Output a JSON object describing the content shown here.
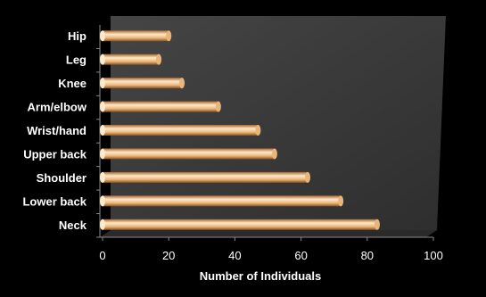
{
  "chart_data": {
    "type": "bar",
    "orientation": "horizontal",
    "categories": [
      "Neck",
      "Lower back",
      "Shoulder",
      "Upper back",
      "Wrist/hand",
      "Arm/elbow",
      "Knee",
      "Leg",
      "Hip"
    ],
    "values": [
      83,
      72,
      62,
      52,
      47,
      35,
      24,
      17,
      20
    ],
    "xlabel": "Number of Individuals",
    "ylabel": "",
    "xlim": [
      0,
      100
    ],
    "xticks": [
      0,
      20,
      40,
      60,
      80,
      100
    ],
    "grid": false,
    "legend": "none",
    "colors": {
      "background": "#000000",
      "plot_back_wall": "#3a3a3a",
      "plot_floor": "#2a2a2a",
      "bar_light": "#ffe9c8",
      "bar_mid": "#e9b57a",
      "bar_dark": "#a8672c",
      "text": "#ffffff"
    }
  }
}
